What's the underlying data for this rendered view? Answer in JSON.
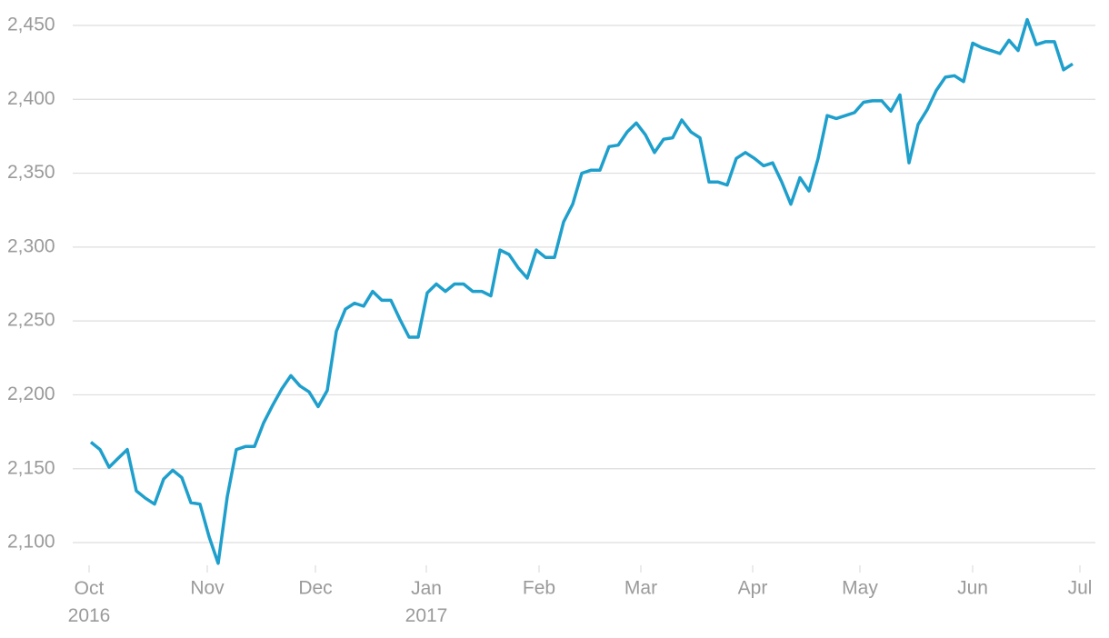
{
  "chart_data": {
    "type": "line",
    "color": "#1e9fcc",
    "grid": true,
    "values": [
      2168,
      2163,
      2151,
      2157,
      2163,
      2135,
      2130,
      2126,
      2143,
      2149,
      2144,
      2127,
      2126,
      2104,
      2086,
      2131,
      2163,
      2165,
      2165,
      2181,
      2193,
      2204,
      2213,
      2206,
      2202,
      2192,
      2203,
      2243,
      2258,
      2262,
      2260,
      2270,
      2264,
      2264,
      2251,
      2239,
      2239,
      2269,
      2275,
      2270,
      2275,
      2275,
      2270,
      2270,
      2267,
      2298,
      2295,
      2286,
      2279,
      2298,
      2293,
      2293,
      2317,
      2329,
      2350,
      2352,
      2352,
      2368,
      2369,
      2378,
      2384,
      2376,
      2364,
      2373,
      2374,
      2386,
      2378,
      2374,
      2344,
      2344,
      2342,
      2360,
      2364,
      2360,
      2355,
      2357,
      2344,
      2329,
      2347,
      2338,
      2360,
      2389,
      2387,
      2389,
      2391,
      2398,
      2399,
      2399,
      2392,
      2403,
      2357,
      2383,
      2393,
      2406,
      2415,
      2416,
      2412,
      2438,
      2435,
      2433,
      2431,
      2440,
      2433,
      2454,
      2437,
      2439,
      2439,
      2420,
      2424
    ],
    "xlim": [
      -0.5,
      109
    ],
    "xticks": [
      {
        "value": -0.2,
        "label": "Oct 2016"
      },
      {
        "value": 12.8,
        "label": "Nov"
      },
      {
        "value": 24.7,
        "label": "Dec"
      },
      {
        "value": 36.9,
        "label": "Jan 2017"
      },
      {
        "value": 49.3,
        "label": "Feb"
      },
      {
        "value": 60.5,
        "label": "Mar"
      },
      {
        "value": 72.8,
        "label": "Apr"
      },
      {
        "value": 84.6,
        "label": "May"
      },
      {
        "value": 97.0,
        "label": "Jun"
      },
      {
        "value": 108.8,
        "label": "Jul"
      }
    ],
    "ylim": [
      2085,
      2460
    ],
    "yticks": [
      {
        "value": 2100,
        "label": "2,100"
      },
      {
        "value": 2150,
        "label": "2,150"
      },
      {
        "value": 2200,
        "label": "2,200"
      },
      {
        "value": 2250,
        "label": "2,250"
      },
      {
        "value": 2300,
        "label": "2,300"
      },
      {
        "value": 2350,
        "label": "2,350"
      },
      {
        "value": 2400,
        "label": "2,400"
      },
      {
        "value": 2450,
        "label": "2,450"
      }
    ]
  }
}
